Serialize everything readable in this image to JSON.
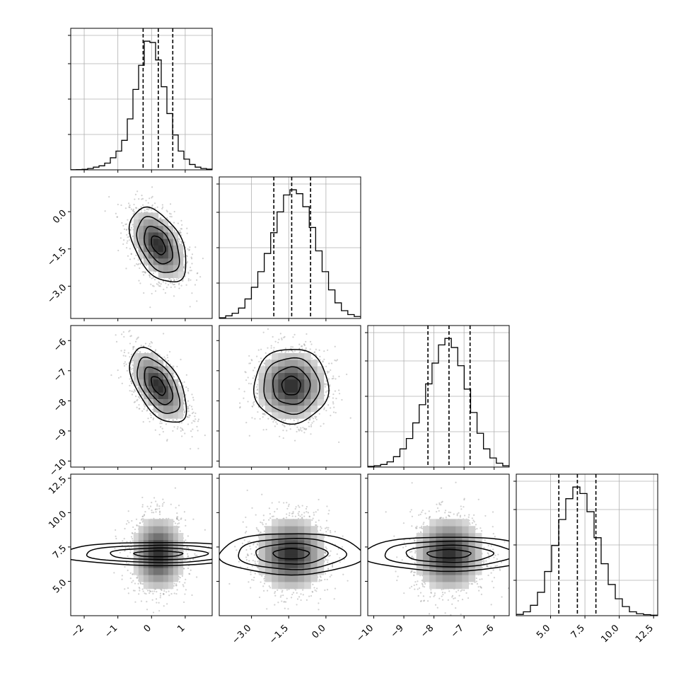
{
  "chart_data": {
    "type": "corner",
    "grid": true,
    "parameters": [
      {
        "range": [
          -2.4,
          1.8
        ],
        "ticks": [
          -2,
          -1,
          0,
          1
        ],
        "tick_labels": [
          "−2",
          "−1",
          "0",
          "1"
        ],
        "quantiles": [
          -0.25,
          0.2,
          0.63
        ],
        "hist_edges": [
          -2.4,
          1.8
        ],
        "hist": [
          0.1,
          0.2,
          0.4,
          1,
          2,
          3,
          5,
          9,
          14,
          22,
          38,
          60,
          78,
          96,
          95,
          82,
          62,
          42,
          26,
          14,
          8,
          4,
          2,
          1,
          0.5
        ]
      },
      {
        "range": [
          -4.3,
          1.4
        ],
        "ticks": [
          -3.0,
          -1.5,
          0.0
        ],
        "tick_labels": [
          "−3.0",
          "−1.5",
          "0.0"
        ],
        "quantiles": [
          -2.1,
          -1.38,
          -0.62
        ],
        "hist": [
          0.5,
          2,
          4,
          8,
          15,
          24,
          36,
          50,
          66,
          82,
          95,
          99,
          96,
          86,
          70,
          52,
          36,
          22,
          12,
          6,
          3,
          1.5
        ]
      },
      {
        "range": [
          -10.2,
          -5.5
        ],
        "ticks": [
          -10,
          -9,
          -8,
          -7,
          -6
        ],
        "tick_labels": [
          "−10",
          "−9",
          "−8",
          "−7",
          "−6"
        ],
        "quantiles": [
          -8.2,
          -7.5,
          -6.8
        ],
        "hist": [
          0.5,
          1,
          2,
          4,
          8,
          14,
          22,
          34,
          48,
          64,
          80,
          94,
          99,
          92,
          78,
          60,
          42,
          26,
          14,
          7,
          3,
          1
        ]
      },
      {
        "range": [
          2.5,
          12.8
        ],
        "ticks": [
          5.0,
          7.5,
          10.0,
          12.5
        ],
        "tick_labels": [
          "5.0",
          "7.5",
          "10.0",
          "12.5"
        ],
        "quantiles": [
          5.6,
          6.95,
          8.3
        ],
        "hist": [
          1,
          3,
          8,
          18,
          34,
          54,
          74,
          90,
          99,
          94,
          80,
          60,
          40,
          24,
          13,
          7,
          3,
          1.5,
          0.8,
          0.4
        ]
      }
    ],
    "pairs": [
      {
        "row": 1,
        "col": 0,
        "mean": [
          0.2,
          -1.35
        ],
        "sd": [
          0.42,
          0.75
        ],
        "rho": -0.45
      },
      {
        "row": 2,
        "col": 0,
        "mean": [
          0.2,
          -7.5
        ],
        "sd": [
          0.42,
          0.62
        ],
        "rho": -0.55
      },
      {
        "row": 2,
        "col": 1,
        "mean": [
          -1.4,
          -7.5
        ],
        "sd": [
          0.75,
          0.62
        ],
        "rho": 0.0
      },
      {
        "row": 3,
        "col": 0,
        "mean": [
          0.2,
          7.0
        ],
        "sd": [
          0.42,
          1.45
        ],
        "rho": 0.0
      },
      {
        "row": 3,
        "col": 1,
        "mean": [
          -1.4,
          7.0
        ],
        "sd": [
          0.75,
          1.45
        ],
        "rho": 0.0
      },
      {
        "row": 3,
        "col": 2,
        "mean": [
          -7.5,
          7.0
        ],
        "sd": [
          0.62,
          1.45
        ],
        "rho": 0.0
      }
    ],
    "title": "",
    "xlabel": "",
    "ylabel": ""
  }
}
